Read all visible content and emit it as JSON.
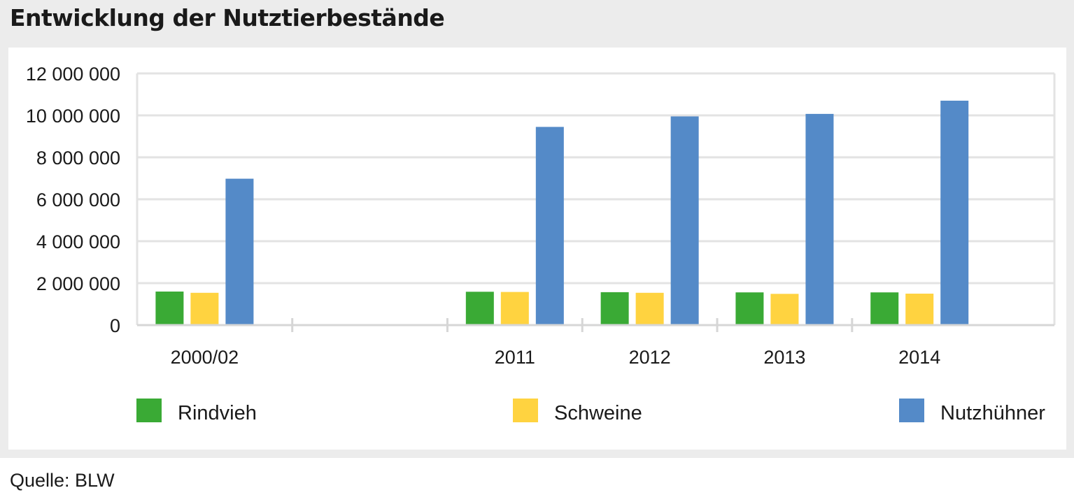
{
  "title": "Entwicklung der Nutztierbestände",
  "source": "Quelle: BLW",
  "chart_data": {
    "type": "bar",
    "categories": [
      "2000/02",
      "",
      "2011",
      "2012",
      "2013",
      "2014"
    ],
    "series": [
      {
        "name": "Rindvieh",
        "color": "#3aaa35",
        "values": [
          1600000,
          null,
          1590000,
          1570000,
          1560000,
          1560000
        ]
      },
      {
        "name": "Schweine",
        "color": "#ffd340",
        "values": [
          1540000,
          null,
          1580000,
          1540000,
          1490000,
          1500000
        ]
      },
      {
        "name": "Nutzhühner",
        "color": "#548ac8",
        "values": [
          6980000,
          null,
          9450000,
          9950000,
          10070000,
          10700000
        ]
      }
    ],
    "y_ticks": [
      "0",
      "2 000 000",
      "4 000 000",
      "6 000 000",
      "8 000 000",
      "10 000 000",
      "12 000 000"
    ],
    "ylim": [
      0,
      12000000
    ],
    "grid": true,
    "legend": "bottom"
  }
}
